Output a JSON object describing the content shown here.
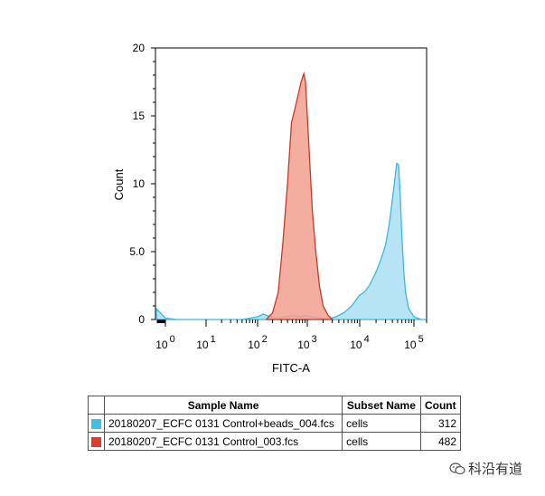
{
  "chart_data": {
    "type": "area",
    "xlabel": "FITC-A",
    "ylabel": "Count",
    "xscale": "log",
    "xlim": [
      -100,
      200000
    ],
    "ylim": [
      0,
      20
    ],
    "yticks": [
      {
        "value": 0,
        "label": "0"
      },
      {
        "value": 5,
        "label": "5.0"
      },
      {
        "value": 10,
        "label": "10"
      },
      {
        "value": 15,
        "label": "15"
      },
      {
        "value": 20,
        "label": "20"
      }
    ],
    "xticks": [
      {
        "value": 0,
        "base": "10",
        "exp": "0"
      },
      {
        "value": 10,
        "base": "10",
        "exp": "1"
      },
      {
        "value": 100,
        "base": "10",
        "exp": "2"
      },
      {
        "value": 1000,
        "base": "10",
        "exp": "3"
      },
      {
        "value": 10000,
        "base": "10",
        "exp": "4"
      },
      {
        "value": 100000,
        "base": "10",
        "exp": "5"
      }
    ],
    "series": [
      {
        "color": "#5ac8e8",
        "x": [
          -100,
          0,
          3,
          10,
          50,
          100,
          130,
          180,
          250,
          350,
          500,
          700,
          900,
          1200,
          1800,
          2500,
          3500,
          5000,
          7000,
          10000,
          12000,
          15000,
          20000,
          25000,
          30000,
          35000,
          40000,
          45000,
          48000,
          52000,
          56000,
          60000,
          65000,
          70000,
          80000,
          100000,
          150000,
          200000
        ],
        "values": [
          0.8,
          0.1,
          0,
          0,
          0,
          0.2,
          0.4,
          0.2,
          0.1,
          0.2,
          0.3,
          0.2,
          0.3,
          0.2,
          0.1,
          0.05,
          0.2,
          0.5,
          1.0,
          1.8,
          2.0,
          2.5,
          3.5,
          4.5,
          5.5,
          7.0,
          8.8,
          10.5,
          11.5,
          11.4,
          9.0,
          6.0,
          3.5,
          2.0,
          0.8,
          0.2,
          0,
          0
        ]
      },
      {
        "color": "#e8412f",
        "x": [
          150,
          200,
          260,
          320,
          400,
          480,
          560,
          650,
          750,
          850,
          920,
          1000,
          1100,
          1250,
          1450,
          1700,
          2000,
          2500,
          3000
        ],
        "values": [
          0,
          0.5,
          2.0,
          5.5,
          10.0,
          14.5,
          15.5,
          16.5,
          17.5,
          18.1,
          17.5,
          15.0,
          12.0,
          8.0,
          5.0,
          2.5,
          1.0,
          0.3,
          0
        ]
      }
    ]
  },
  "legend": {
    "headers": {
      "sample": "Sample Name",
      "subset": "Subset Name",
      "count": "Count"
    },
    "rows": [
      {
        "color": "#41c0e6",
        "sample": "20180207_ECFC 0131 Control+beads_004.fcs",
        "subset": "cells",
        "count": "312"
      },
      {
        "color": "#e03a2e",
        "sample": "20180207_ECFC 0131 Control_003.fcs",
        "subset": "cells",
        "count": "482"
      }
    ]
  },
  "watermark": {
    "text": "科沿有道",
    "icon": "wechat-icon"
  }
}
